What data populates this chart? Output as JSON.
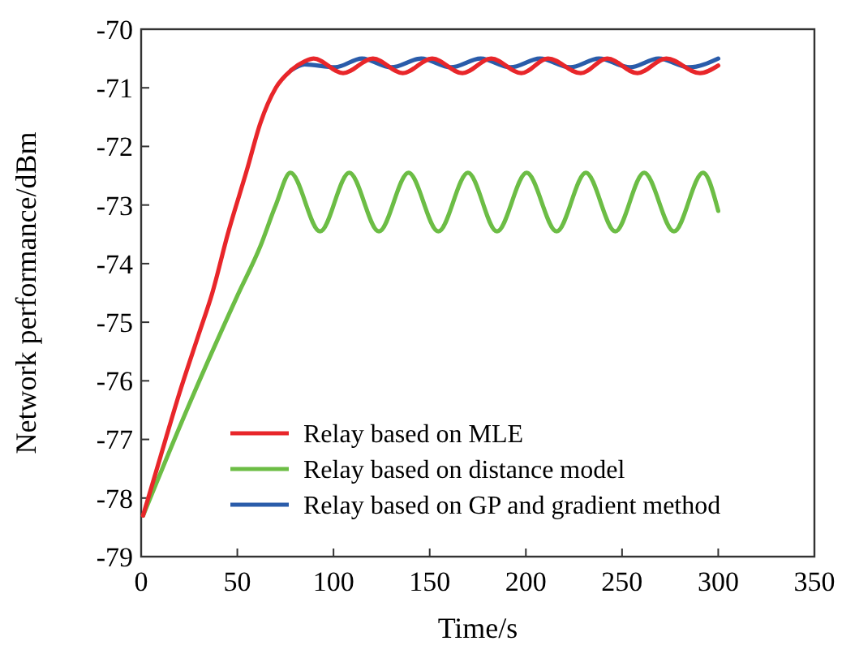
{
  "chart_data": {
    "type": "line",
    "xlabel": "Time/s",
    "ylabel": "Network performance/dBm",
    "xlim": [
      0,
      350
    ],
    "xticks": [
      0,
      50,
      100,
      150,
      200,
      250,
      300,
      350
    ],
    "ylim": [
      -79,
      -70
    ],
    "yticks": [
      -79,
      -78,
      -77,
      -76,
      -75,
      -74,
      -73,
      -72,
      -71,
      -70
    ],
    "grid": false,
    "legend": "bottom left",
    "marker": "none",
    "line_style": "solid",
    "series": [
      {
        "name": "Relay based on MLE",
        "color": "#e8262a",
        "x": [
          1,
          10,
          20,
          30,
          37,
          45,
          55,
          62,
          70,
          78,
          85,
          89.7,
          105,
          120.5,
          136,
          151.3,
          167,
          182,
          197.6,
          211.5,
          228.5,
          242.3,
          258,
          273,
          290.5,
          300
        ],
        "values": [
          -78.3,
          -77.3,
          -76.2,
          -75.2,
          -74.5,
          -73.5,
          -72.4,
          -71.6,
          -71.0,
          -70.7,
          -70.55,
          -70.5,
          -70.75,
          -70.5,
          -70.75,
          -70.5,
          -70.75,
          -70.5,
          -70.75,
          -70.5,
          -70.75,
          -70.5,
          -70.75,
          -70.5,
          -70.75,
          -70.62
        ]
      },
      {
        "name": "Relay based on distance model",
        "color": "#6cbd45",
        "x": [
          1,
          25,
          50,
          62,
          70,
          77.6,
          93,
          108.2,
          123.6,
          139,
          154.5,
          169.9,
          185,
          200.4,
          216,
          231.2,
          246.5,
          261.5,
          277,
          292.1,
          300
        ],
        "values": [
          -78.3,
          -76.4,
          -74.55,
          -73.7,
          -73.0,
          -72.45,
          -73.45,
          -72.45,
          -73.45,
          -72.45,
          -73.45,
          -72.45,
          -73.45,
          -72.45,
          -73.45,
          -72.45,
          -73.45,
          -72.45,
          -73.45,
          -72.45,
          -73.1
        ]
      },
      {
        "name": "Relay based on GP and gradient method",
        "color": "#2a5caa",
        "x": [
          78,
          85,
          100.8,
          114.8,
          130,
          145.6,
          161,
          176.5,
          192,
          207.3,
          223,
          238,
          254,
          269,
          285,
          300
        ],
        "values": [
          -70.7,
          -70.6,
          -70.65,
          -70.5,
          -70.65,
          -70.5,
          -70.65,
          -70.5,
          -70.65,
          -70.5,
          -70.65,
          -70.5,
          -70.65,
          -70.5,
          -70.65,
          -70.5
        ]
      }
    ]
  }
}
